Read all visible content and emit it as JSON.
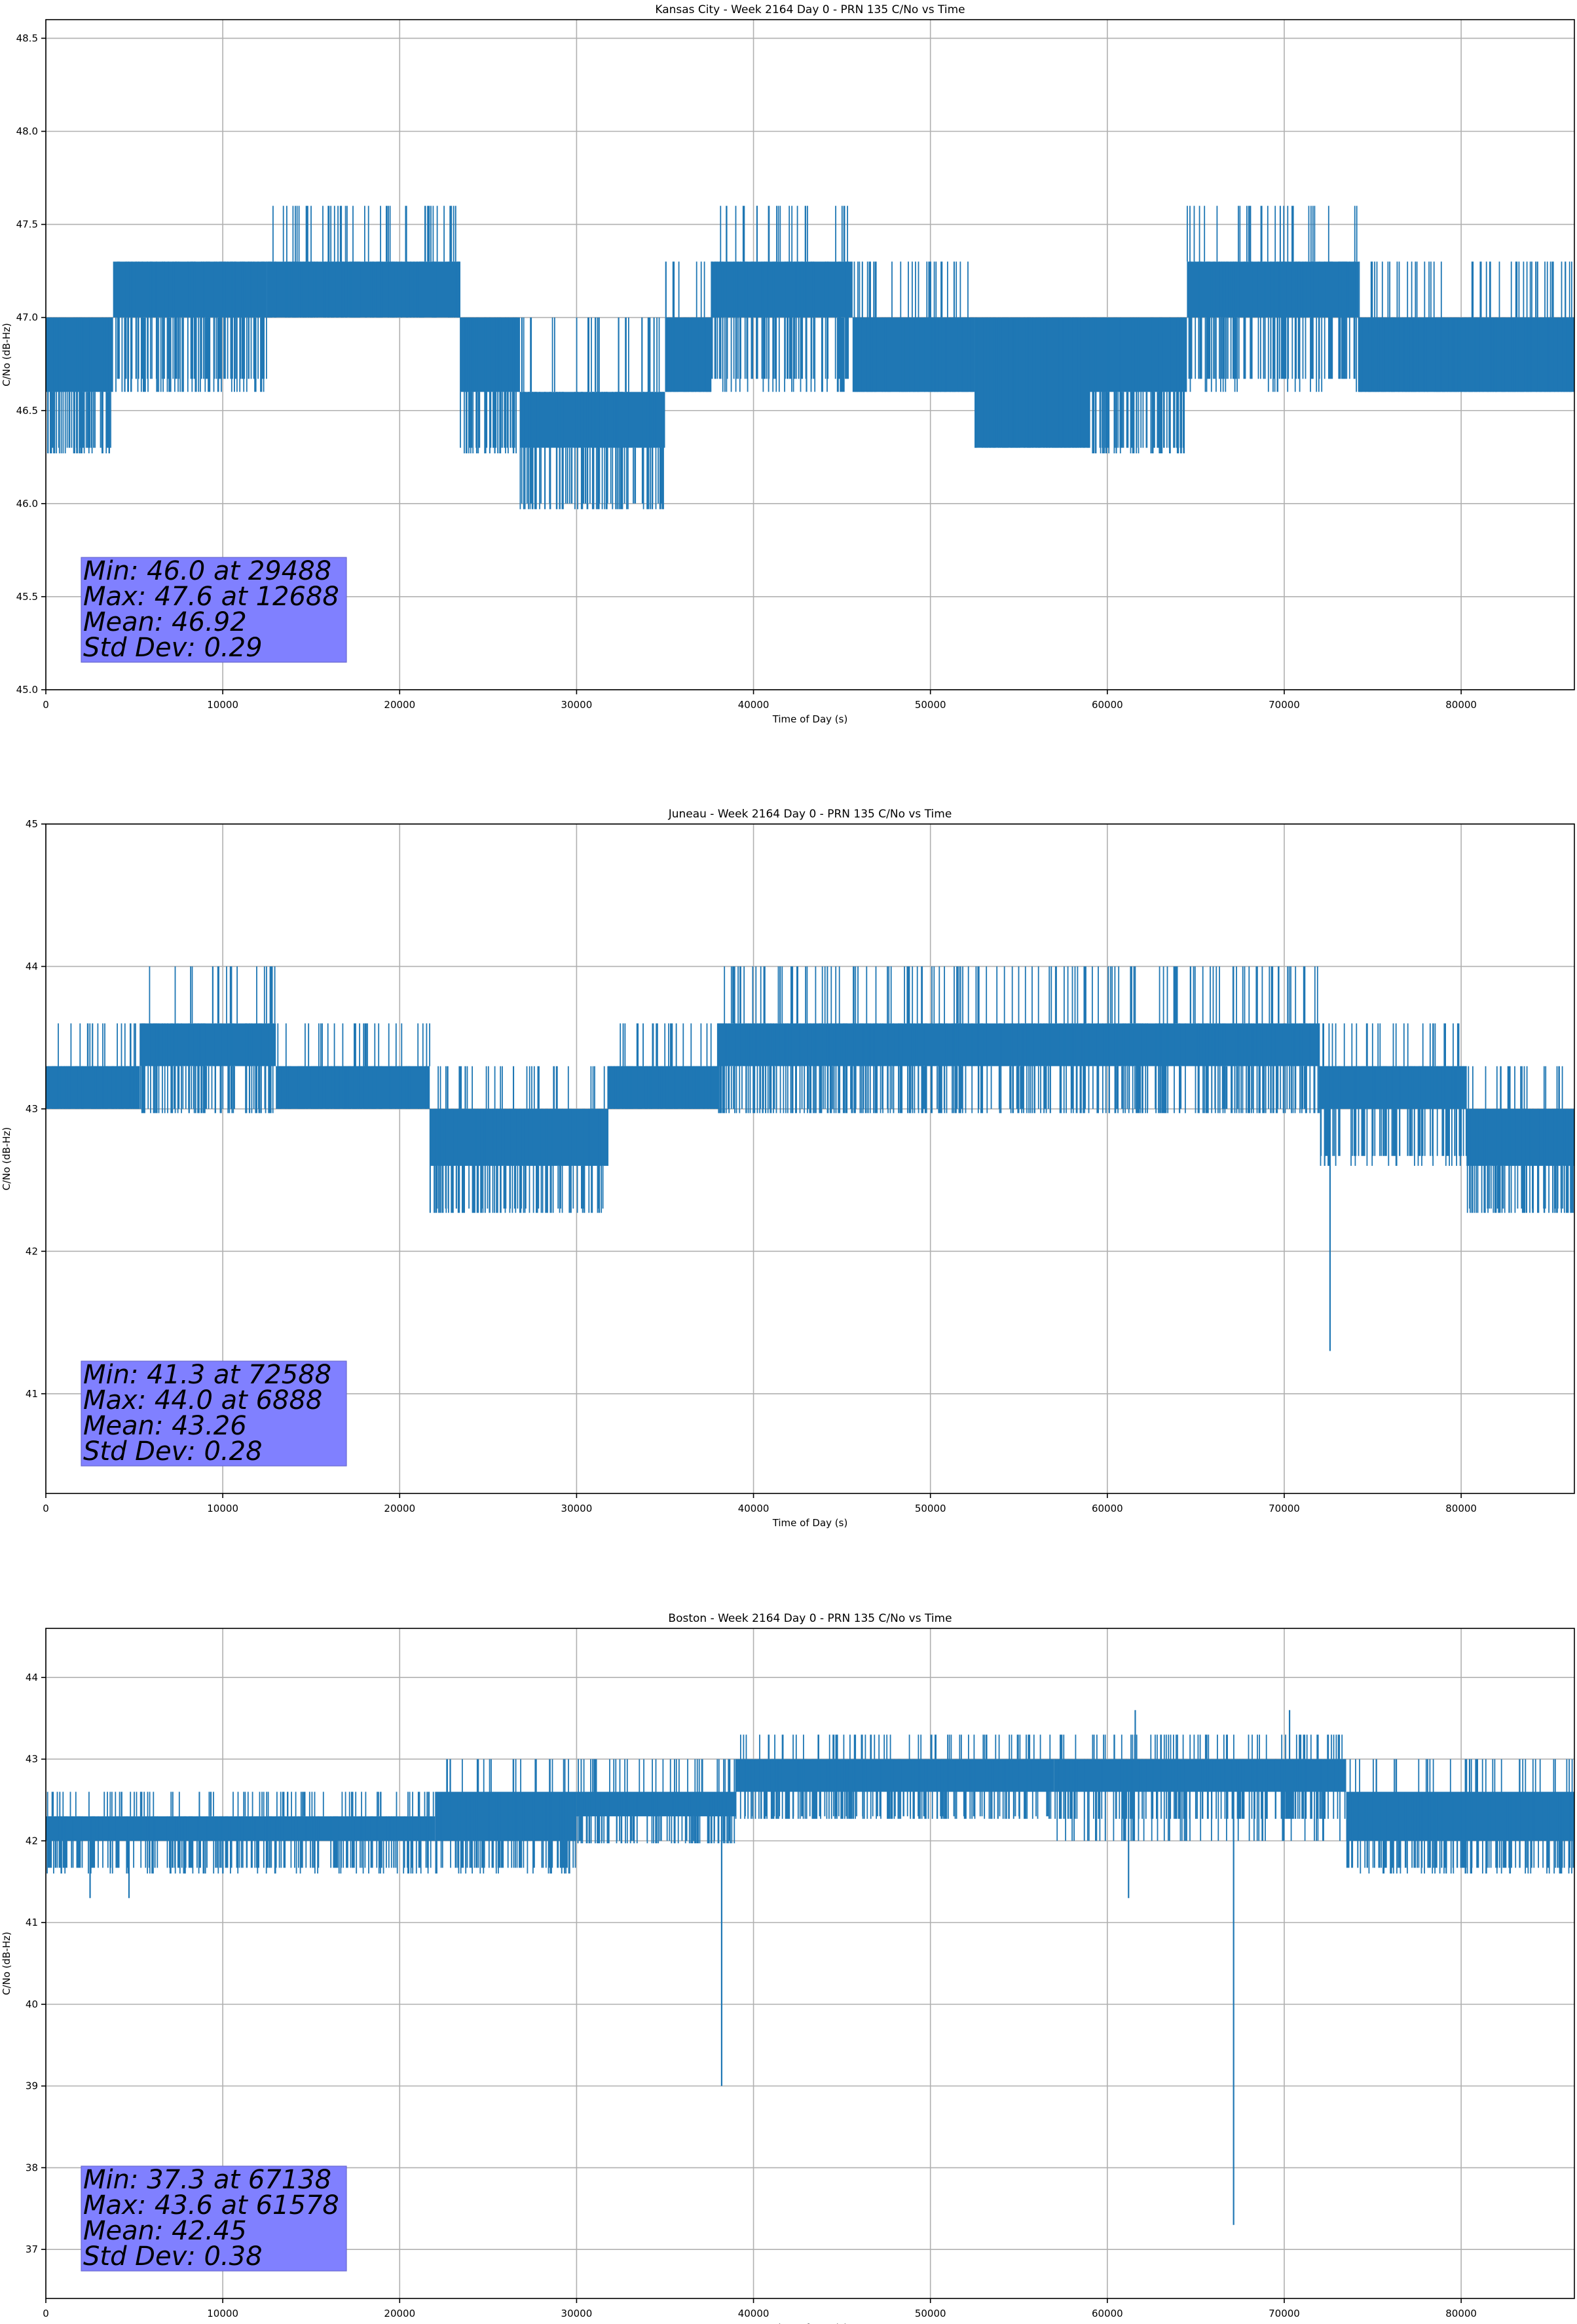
{
  "chart_data": [
    {
      "type": "line",
      "title": "Kansas City - Week 2164 Day 0 - PRN 135 C/No vs Time",
      "xlabel": "Time of Day (s)",
      "ylabel": "C/No (dB-Hz)",
      "xlim": [
        0,
        86400
      ],
      "ylim": [
        45.0,
        48.6
      ],
      "xticks": [
        0,
        10000,
        20000,
        30000,
        40000,
        50000,
        60000,
        70000,
        80000
      ],
      "yticks": [
        45.0,
        45.5,
        46.0,
        46.5,
        47.0,
        47.5,
        48.0,
        48.5
      ],
      "ytick_decimals": 1,
      "grid": true,
      "color": "#1f77b4",
      "level_step": 0.33,
      "series": [
        {
          "segments": [
            {
              "x0": 0,
              "x1": 3800,
              "min": 46.6,
              "max": 47.0,
              "sparse_above": 0,
              "sparse_below": 46.3
            },
            {
              "x0": 3800,
              "x1": 12500,
              "min": 47.0,
              "max": 47.3,
              "sparse_above": 0,
              "sparse_below": 46.6
            },
            {
              "x0": 12500,
              "x1": 23400,
              "min": 47.0,
              "max": 47.3,
              "sparse_above": 47.6,
              "sparse_below": 0
            },
            {
              "x0": 23400,
              "x1": 26800,
              "min": 46.6,
              "max": 47.0,
              "sparse_above": 0,
              "sparse_below": 46.3
            },
            {
              "x0": 26800,
              "x1": 35000,
              "min": 46.3,
              "max": 46.6,
              "sparse_above": 47.0,
              "sparse_below": 46.0
            },
            {
              "x0": 35000,
              "x1": 37600,
              "min": 46.6,
              "max": 47.0,
              "sparse_above": 47.3,
              "sparse_below": 0
            },
            {
              "x0": 37600,
              "x1": 45600,
              "min": 47.0,
              "max": 47.3,
              "sparse_above": 47.6,
              "sparse_below": 46.6
            },
            {
              "x0": 45600,
              "x1": 52500,
              "min": 46.6,
              "max": 47.0,
              "sparse_above": 47.3,
              "sparse_below": 0
            },
            {
              "x0": 52500,
              "x1": 59000,
              "min": 46.3,
              "max": 47.0,
              "sparse_above": 0,
              "sparse_below": 0
            },
            {
              "x0": 59000,
              "x1": 64500,
              "min": 46.6,
              "max": 47.0,
              "sparse_above": 0,
              "sparse_below": 46.3
            },
            {
              "x0": 64500,
              "x1": 74200,
              "min": 47.0,
              "max": 47.3,
              "sparse_above": 47.6,
              "sparse_below": 46.6
            },
            {
              "x0": 74200,
              "x1": 86400,
              "min": 46.6,
              "max": 47.0,
              "sparse_above": 47.3,
              "sparse_below": 0
            }
          ],
          "spikes": [
            {
              "x": 29488,
              "y": 46.0
            },
            {
              "x": 30500,
              "y": 46.0
            },
            {
              "x": 40200,
              "y": 47.6
            }
          ]
        }
      ],
      "stats": {
        "min": "Min: 46.0 at 29488",
        "max": "Max: 47.6 at 12688",
        "mean": "Mean: 46.92",
        "std": "Std Dev: 0.29"
      }
    },
    {
      "type": "line",
      "title": "Juneau - Week 2164 Day 0 - PRN 135 C/No vs Time",
      "xlabel": "Time of Day (s)",
      "ylabel": "C/No (dB-Hz)",
      "xlim": [
        0,
        86400
      ],
      "ylim": [
        40.3,
        45.0
      ],
      "xticks": [
        0,
        10000,
        20000,
        30000,
        40000,
        50000,
        60000,
        70000,
        80000
      ],
      "yticks": [
        41,
        42,
        43,
        44,
        45
      ],
      "ytick_decimals": 0,
      "grid": true,
      "color": "#1f77b4",
      "level_step": 0.33,
      "series": [
        {
          "segments": [
            {
              "x0": 0,
              "x1": 5300,
              "min": 43.0,
              "max": 43.3,
              "sparse_above": 43.6,
              "sparse_below": 0
            },
            {
              "x0": 5300,
              "x1": 13000,
              "min": 43.3,
              "max": 43.6,
              "sparse_above": 44.0,
              "sparse_below": 43.0
            },
            {
              "x0": 13000,
              "x1": 21700,
              "min": 43.0,
              "max": 43.3,
              "sparse_above": 43.6,
              "sparse_below": 0
            },
            {
              "x0": 21700,
              "x1": 31800,
              "min": 42.6,
              "max": 43.0,
              "sparse_above": 43.3,
              "sparse_below": 42.3
            },
            {
              "x0": 31800,
              "x1": 38000,
              "min": 43.0,
              "max": 43.3,
              "sparse_above": 43.6,
              "sparse_below": 0
            },
            {
              "x0": 38000,
              "x1": 72000,
              "min": 43.3,
              "max": 43.6,
              "sparse_above": 44.0,
              "sparse_below": 43.0
            },
            {
              "x0": 72000,
              "x1": 80300,
              "min": 43.0,
              "max": 43.3,
              "sparse_above": 43.6,
              "sparse_below": 42.6
            },
            {
              "x0": 80300,
              "x1": 86400,
              "min": 42.6,
              "max": 43.0,
              "sparse_above": 43.3,
              "sparse_below": 42.3
            }
          ],
          "spikes": [
            {
              "x": 72588,
              "y": 41.3
            }
          ]
        }
      ],
      "stats": {
        "min": "Min: 41.3 at 72588",
        "max": "Max: 44.0 at 6888",
        "mean": "Mean: 43.26",
        "std": "Std Dev: 0.28"
      }
    },
    {
      "type": "line",
      "title": "Boston - Week 2164 Day 0 - PRN 135 C/No vs Time",
      "xlabel": "Time of Day (s)",
      "ylabel": "C/No (dB-Hz)",
      "xlim": [
        0,
        86400
      ],
      "ylim": [
        36.4,
        44.6
      ],
      "xticks": [
        0,
        10000,
        20000,
        30000,
        40000,
        50000,
        60000,
        70000,
        80000
      ],
      "yticks": [
        37,
        38,
        39,
        40,
        41,
        42,
        43,
        44
      ],
      "ytick_decimals": 0,
      "grid": true,
      "color": "#1f77b4",
      "level_step": 0.33,
      "series": [
        {
          "segments": [
            {
              "x0": 0,
              "x1": 22000,
              "min": 42.0,
              "max": 42.3,
              "sparse_above": 42.6,
              "sparse_below": 41.6
            },
            {
              "x0": 22000,
              "x1": 30000,
              "min": 42.0,
              "max": 42.6,
              "sparse_above": 43.0,
              "sparse_below": 41.6
            },
            {
              "x0": 30000,
              "x1": 39000,
              "min": 42.3,
              "max": 42.6,
              "sparse_above": 43.0,
              "sparse_below": 42.0
            },
            {
              "x0": 39000,
              "x1": 57000,
              "min": 42.6,
              "max": 43.0,
              "sparse_above": 43.3,
              "sparse_below": 42.3
            },
            {
              "x0": 57000,
              "x1": 73500,
              "min": 42.6,
              "max": 43.0,
              "sparse_above": 43.3,
              "sparse_below": 42.0
            },
            {
              "x0": 73500,
              "x1": 86400,
              "min": 42.0,
              "max": 42.6,
              "sparse_above": 43.0,
              "sparse_below": 41.6
            }
          ],
          "spikes": [
            {
              "x": 2500,
              "y": 41.3
            },
            {
              "x": 4700,
              "y": 41.3
            },
            {
              "x": 38200,
              "y": 39.0
            },
            {
              "x": 61200,
              "y": 41.3
            },
            {
              "x": 61578,
              "y": 43.6
            },
            {
              "x": 67138,
              "y": 37.3
            },
            {
              "x": 70300,
              "y": 43.6
            }
          ]
        }
      ],
      "stats": {
        "min": "Min: 37.3 at 67138",
        "max": "Max: 43.6 at 61578",
        "mean": "Mean: 42.45",
        "std": "Std Dev: 0.38"
      }
    }
  ]
}
